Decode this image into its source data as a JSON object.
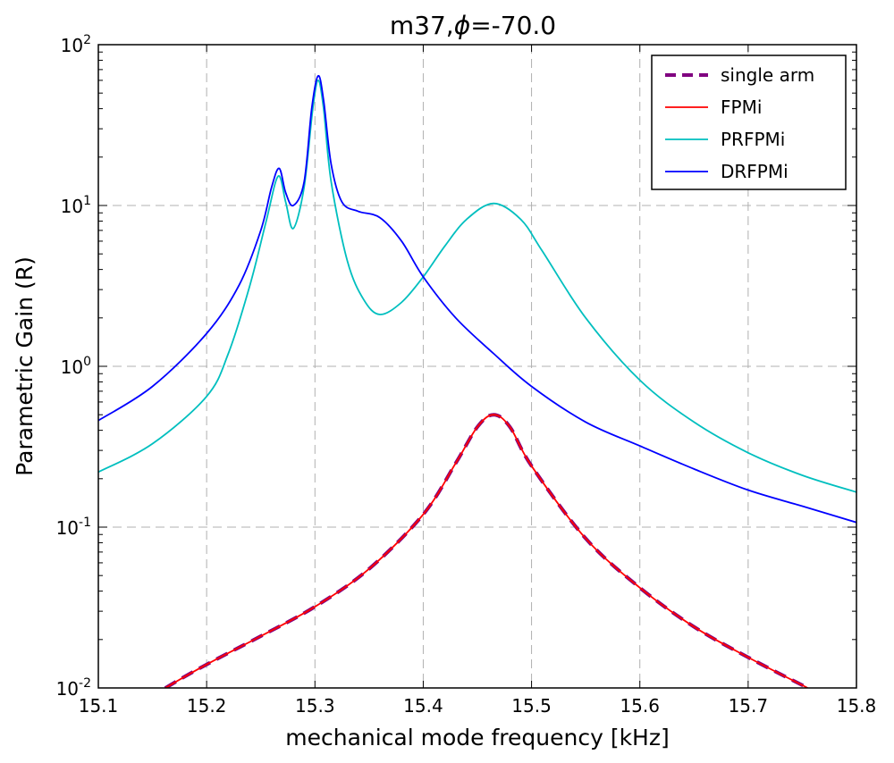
{
  "chart_data": {
    "type": "line",
    "title_main": "m37,",
    "title_symbol": "ϕ",
    "title_rest": "=-70.0",
    "xlabel": "mechanical mode frequency [kHz]",
    "ylabel": "Parametric Gain (R)",
    "xlim": [
      15.1,
      15.8
    ],
    "ylim": [
      0.01,
      100
    ],
    "yscale": "log",
    "grid": true,
    "legend_position": "top-right",
    "x_ticks": [
      {
        "value": 15.1,
        "label": "15.1"
      },
      {
        "value": 15.2,
        "label": "15.2"
      },
      {
        "value": 15.3,
        "label": "15.3"
      },
      {
        "value": 15.4,
        "label": "15.4"
      },
      {
        "value": 15.5,
        "label": "15.5"
      },
      {
        "value": 15.6,
        "label": "15.6"
      },
      {
        "value": 15.7,
        "label": "15.7"
      },
      {
        "value": 15.8,
        "label": "15.8"
      }
    ],
    "y_ticks": [
      {
        "value": 0.01,
        "base": "10",
        "exp": "-2"
      },
      {
        "value": 0.1,
        "base": "10",
        "exp": "-1"
      },
      {
        "value": 1,
        "base": "10",
        "exp": "0"
      },
      {
        "value": 10,
        "base": "10",
        "exp": "1"
      },
      {
        "value": 100,
        "base": "10",
        "exp": "2"
      }
    ],
    "series": [
      {
        "name": "single arm",
        "color": "#800080",
        "style": "dashed",
        "x": [
          15.1,
          15.162,
          15.2,
          15.25,
          15.3,
          15.35,
          15.4,
          15.43,
          15.45,
          15.465,
          15.48,
          15.5,
          15.55,
          15.6,
          15.65,
          15.7,
          15.755
        ],
        "y": [
          0.0055,
          0.01,
          0.014,
          0.021,
          0.032,
          0.055,
          0.12,
          0.25,
          0.42,
          0.5,
          0.42,
          0.24,
          0.085,
          0.042,
          0.024,
          0.0155,
          0.01
        ]
      },
      {
        "name": "FPMi",
        "color": "#ff0000",
        "style": "solid",
        "x": [
          15.1,
          15.162,
          15.2,
          15.25,
          15.3,
          15.35,
          15.4,
          15.43,
          15.45,
          15.465,
          15.48,
          15.5,
          15.55,
          15.6,
          15.65,
          15.7,
          15.755
        ],
        "y": [
          0.0055,
          0.01,
          0.014,
          0.021,
          0.032,
          0.055,
          0.12,
          0.25,
          0.42,
          0.5,
          0.42,
          0.24,
          0.085,
          0.042,
          0.024,
          0.0155,
          0.01
        ]
      },
      {
        "name": "PRFPMi",
        "color": "#00bfbf",
        "style": "solid",
        "x": [
          15.1,
          15.15,
          15.2,
          15.22,
          15.24,
          15.255,
          15.266,
          15.273,
          15.28,
          15.29,
          15.298,
          15.303,
          15.308,
          15.315,
          15.33,
          15.345,
          15.36,
          15.38,
          15.4,
          15.42,
          15.44,
          15.465,
          15.49,
          15.51,
          15.55,
          15.6,
          15.65,
          15.7,
          15.75,
          15.8
        ],
        "y": [
          0.22,
          0.33,
          0.65,
          1.2,
          3.2,
          8.0,
          15.2,
          10.5,
          7.2,
          13.0,
          40.0,
          60.0,
          40.0,
          14.0,
          4.5,
          2.6,
          2.1,
          2.5,
          3.6,
          5.6,
          8.2,
          10.3,
          8.2,
          5.2,
          2.0,
          0.82,
          0.45,
          0.29,
          0.21,
          0.165
        ]
      },
      {
        "name": "DRFPMi",
        "color": "#0000ff",
        "style": "solid",
        "x": [
          15.1,
          15.15,
          15.2,
          15.23,
          15.25,
          15.26,
          15.267,
          15.273,
          15.28,
          15.29,
          15.297,
          15.303,
          15.308,
          15.315,
          15.325,
          15.34,
          15.36,
          15.38,
          15.4,
          15.43,
          15.465,
          15.5,
          15.55,
          15.6,
          15.65,
          15.7,
          15.75,
          15.8
        ],
        "y": [
          0.46,
          0.75,
          1.6,
          3.2,
          7.0,
          13.0,
          17.0,
          12.0,
          10.0,
          14.0,
          40.0,
          64.0,
          45.0,
          18.0,
          10.5,
          9.2,
          8.4,
          6.0,
          3.6,
          2.0,
          1.2,
          0.75,
          0.45,
          0.32,
          0.23,
          0.17,
          0.135,
          0.107
        ]
      }
    ]
  }
}
